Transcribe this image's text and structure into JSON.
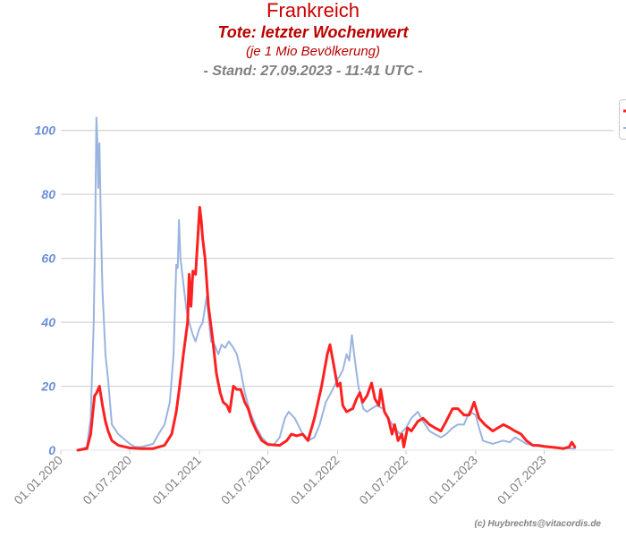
{
  "header": {
    "title": "Frankreich",
    "subtitle": "Tote: letzter Wochenwert",
    "unit_note": "(je 1 Mio Bevölkerung)",
    "stand": "- Stand: 27.09.2023 - 11:41 UTC -"
  },
  "credit": "(c) Huybrechts@vitacordis.de",
  "colors": {
    "title": "#cc0000",
    "subtitle": "#bb0000",
    "stand": "#808080",
    "y_tick": "#6a8fd8",
    "x_tick": "#808080",
    "grid": "#d3d3d3",
    "series_red": "#ff2020",
    "series_blue": "#9ab4e0"
  },
  "chart_data": {
    "type": "line",
    "x_kind": "date",
    "xlim": [
      "2020-01-01",
      "2023-12-31"
    ],
    "ylim": [
      0,
      110
    ],
    "y_ticks": [
      0,
      20,
      40,
      60,
      80,
      100
    ],
    "x_ticks": [
      "01.01.2020",
      "01.07.2020",
      "01.01.2021",
      "01.07.2021",
      "01.01.2022",
      "01.07.2022",
      "01.01.2023",
      "01.07.2023"
    ],
    "grid": true,
    "legend_position": "top-right",
    "series": [
      {
        "color_key": "series_red",
        "points": [
          [
            "2020-02-15",
            0
          ],
          [
            "2020-03-10",
            0.5
          ],
          [
            "2020-03-20",
            5
          ],
          [
            "2020-03-30",
            17
          ],
          [
            "2020-04-05",
            18
          ],
          [
            "2020-04-12",
            20
          ],
          [
            "2020-04-20",
            14
          ],
          [
            "2020-04-28",
            9
          ],
          [
            "2020-05-05",
            6
          ],
          [
            "2020-05-15",
            3
          ],
          [
            "2020-06-01",
            1.5
          ],
          [
            "2020-07-01",
            0.7
          ],
          [
            "2020-08-01",
            0.5
          ],
          [
            "2020-09-01",
            0.5
          ],
          [
            "2020-10-01",
            1.5
          ],
          [
            "2020-10-20",
            5
          ],
          [
            "2020-11-01",
            12
          ],
          [
            "2020-11-10",
            20
          ],
          [
            "2020-11-20",
            30
          ],
          [
            "2020-12-01",
            40
          ],
          [
            "2020-12-05",
            55
          ],
          [
            "2020-12-10",
            45
          ],
          [
            "2020-12-15",
            56
          ],
          [
            "2020-12-22",
            55
          ],
          [
            "2021-01-02",
            76
          ],
          [
            "2021-01-06",
            72
          ],
          [
            "2021-01-10",
            66
          ],
          [
            "2021-01-16",
            60
          ],
          [
            "2021-01-25",
            45
          ],
          [
            "2021-02-05",
            35
          ],
          [
            "2021-02-15",
            24
          ],
          [
            "2021-02-25",
            18
          ],
          [
            "2021-03-05",
            15
          ],
          [
            "2021-03-15",
            14
          ],
          [
            "2021-03-22",
            12
          ],
          [
            "2021-04-01",
            20
          ],
          [
            "2021-04-10",
            19
          ],
          [
            "2021-04-20",
            19
          ],
          [
            "2021-05-01",
            15
          ],
          [
            "2021-05-10",
            13
          ],
          [
            "2021-05-20",
            9
          ],
          [
            "2021-06-01",
            6
          ],
          [
            "2021-06-15",
            3
          ],
          [
            "2021-07-01",
            1.8
          ],
          [
            "2021-08-01",
            1.5
          ],
          [
            "2021-08-20",
            3
          ],
          [
            "2021-09-01",
            5
          ],
          [
            "2021-09-15",
            4.5
          ],
          [
            "2021-10-01",
            5
          ],
          [
            "2021-10-15",
            3
          ],
          [
            "2021-11-01",
            10
          ],
          [
            "2021-11-20",
            20
          ],
          [
            "2021-12-05",
            30
          ],
          [
            "2021-12-12",
            33
          ],
          [
            "2021-12-20",
            28
          ],
          [
            "2022-01-01",
            20
          ],
          [
            "2022-01-08",
            21
          ],
          [
            "2022-01-15",
            14
          ],
          [
            "2022-01-25",
            12
          ],
          [
            "2022-02-10",
            13
          ],
          [
            "2022-02-20",
            16
          ],
          [
            "2022-03-01",
            18
          ],
          [
            "2022-03-08",
            15
          ],
          [
            "2022-03-20",
            17
          ],
          [
            "2022-04-01",
            21
          ],
          [
            "2022-04-10",
            16
          ],
          [
            "2022-04-20",
            14
          ],
          [
            "2022-04-25",
            19
          ],
          [
            "2022-05-05",
            12
          ],
          [
            "2022-05-15",
            10
          ],
          [
            "2022-05-25",
            5
          ],
          [
            "2022-06-01",
            8
          ],
          [
            "2022-06-10",
            3
          ],
          [
            "2022-06-20",
            5
          ],
          [
            "2022-06-25",
            1
          ],
          [
            "2022-07-05",
            7
          ],
          [
            "2022-07-15",
            6
          ],
          [
            "2022-08-01",
            9
          ],
          [
            "2022-08-15",
            10
          ],
          [
            "2022-09-01",
            8
          ],
          [
            "2022-09-15",
            7
          ],
          [
            "2022-10-01",
            6
          ],
          [
            "2022-10-15",
            9
          ],
          [
            "2022-11-01",
            13
          ],
          [
            "2022-11-15",
            13
          ],
          [
            "2022-12-01",
            11
          ],
          [
            "2022-12-15",
            11
          ],
          [
            "2022-12-28",
            15
          ],
          [
            "2023-01-10",
            10
          ],
          [
            "2023-01-25",
            8
          ],
          [
            "2023-02-15",
            6
          ],
          [
            "2023-03-01",
            7
          ],
          [
            "2023-03-15",
            8
          ],
          [
            "2023-04-01",
            7
          ],
          [
            "2023-04-15",
            6
          ],
          [
            "2023-05-01",
            5
          ],
          [
            "2023-05-15",
            3
          ],
          [
            "2023-06-01",
            1.5
          ],
          [
            "2023-06-15",
            1.5
          ],
          [
            "2023-07-01",
            1.2
          ],
          [
            "2023-07-15",
            1
          ],
          [
            "2023-08-01",
            0.8
          ],
          [
            "2023-08-20",
            0.5
          ],
          [
            "2023-09-05",
            1
          ],
          [
            "2023-09-12",
            2.5
          ],
          [
            "2023-09-20",
            1
          ]
        ]
      },
      {
        "color_key": "series_blue",
        "points": [
          [
            "2020-02-15",
            0
          ],
          [
            "2020-03-10",
            1
          ],
          [
            "2020-03-20",
            10
          ],
          [
            "2020-03-28",
            40
          ],
          [
            "2020-04-01",
            70
          ],
          [
            "2020-04-04",
            104
          ],
          [
            "2020-04-07",
            95
          ],
          [
            "2020-04-09",
            82
          ],
          [
            "2020-04-12",
            96
          ],
          [
            "2020-04-16",
            70
          ],
          [
            "2020-04-20",
            50
          ],
          [
            "2020-04-28",
            30
          ],
          [
            "2020-05-05",
            22
          ],
          [
            "2020-05-15",
            8
          ],
          [
            "2020-06-01",
            5
          ],
          [
            "2020-07-01",
            2
          ],
          [
            "2020-07-15",
            1
          ],
          [
            "2020-08-01",
            1
          ],
          [
            "2020-09-01",
            2
          ],
          [
            "2020-09-15",
            5
          ],
          [
            "2020-10-01",
            8
          ],
          [
            "2020-10-15",
            15
          ],
          [
            "2020-10-25",
            30
          ],
          [
            "2020-11-01",
            58
          ],
          [
            "2020-11-05",
            57
          ],
          [
            "2020-11-08",
            72
          ],
          [
            "2020-11-12",
            60
          ],
          [
            "2020-11-20",
            52
          ],
          [
            "2020-11-28",
            44
          ],
          [
            "2020-12-05",
            40
          ],
          [
            "2020-12-15",
            36
          ],
          [
            "2020-12-22",
            34
          ],
          [
            "2021-01-01",
            38
          ],
          [
            "2021-01-10",
            40
          ],
          [
            "2021-01-20",
            48
          ],
          [
            "2021-02-01",
            34
          ],
          [
            "2021-02-10",
            33
          ],
          [
            "2021-02-20",
            30
          ],
          [
            "2021-03-01",
            33
          ],
          [
            "2021-03-10",
            32
          ],
          [
            "2021-03-20",
            34
          ],
          [
            "2021-04-01",
            32
          ],
          [
            "2021-04-10",
            30
          ],
          [
            "2021-04-20",
            25
          ],
          [
            "2021-05-01",
            18
          ],
          [
            "2021-05-15",
            12
          ],
          [
            "2021-06-01",
            7
          ],
          [
            "2021-06-15",
            4
          ],
          [
            "2021-07-01",
            2
          ],
          [
            "2021-07-15",
            1.5
          ],
          [
            "2021-08-01",
            4
          ],
          [
            "2021-08-15",
            10
          ],
          [
            "2021-08-25",
            12
          ],
          [
            "2021-09-10",
            10
          ],
          [
            "2021-10-01",
            5
          ],
          [
            "2021-10-15",
            3
          ],
          [
            "2021-11-01",
            4
          ],
          [
            "2021-11-15",
            8
          ],
          [
            "2021-12-01",
            15
          ],
          [
            "2021-12-15",
            18
          ],
          [
            "2022-01-01",
            22
          ],
          [
            "2022-01-15",
            25
          ],
          [
            "2022-01-25",
            30
          ],
          [
            "2022-02-01",
            28
          ],
          [
            "2022-02-08",
            36
          ],
          [
            "2022-02-14",
            30
          ],
          [
            "2022-02-25",
            20
          ],
          [
            "2022-03-10",
            13
          ],
          [
            "2022-03-20",
            12
          ],
          [
            "2022-04-01",
            13
          ],
          [
            "2022-04-15",
            14
          ],
          [
            "2022-05-01",
            13
          ],
          [
            "2022-05-15",
            10
          ],
          [
            "2022-06-01",
            7
          ],
          [
            "2022-06-15",
            5
          ],
          [
            "2022-07-01",
            7
          ],
          [
            "2022-07-15",
            10
          ],
          [
            "2022-08-01",
            12
          ],
          [
            "2022-08-15",
            9
          ],
          [
            "2022-09-01",
            6
          ],
          [
            "2022-09-15",
            5
          ],
          [
            "2022-10-01",
            4
          ],
          [
            "2022-10-15",
            5
          ],
          [
            "2022-11-01",
            7
          ],
          [
            "2022-11-15",
            8
          ],
          [
            "2022-12-01",
            8
          ],
          [
            "2022-12-15",
            12
          ],
          [
            "2023-01-01",
            11
          ],
          [
            "2023-01-10",
            7
          ],
          [
            "2023-01-20",
            3
          ],
          [
            "2023-02-01",
            2.5
          ],
          [
            "2023-02-15",
            2
          ],
          [
            "2023-03-01",
            2.5
          ],
          [
            "2023-03-15",
            3
          ],
          [
            "2023-04-01",
            2.5
          ],
          [
            "2023-04-15",
            4
          ],
          [
            "2023-05-01",
            3
          ],
          [
            "2023-05-15",
            2
          ],
          [
            "2023-06-01",
            1.5
          ],
          [
            "2023-07-01",
            1
          ],
          [
            "2023-08-01",
            0.8
          ],
          [
            "2023-09-01",
            0.6
          ],
          [
            "2023-09-20",
            0.5
          ]
        ]
      }
    ]
  }
}
